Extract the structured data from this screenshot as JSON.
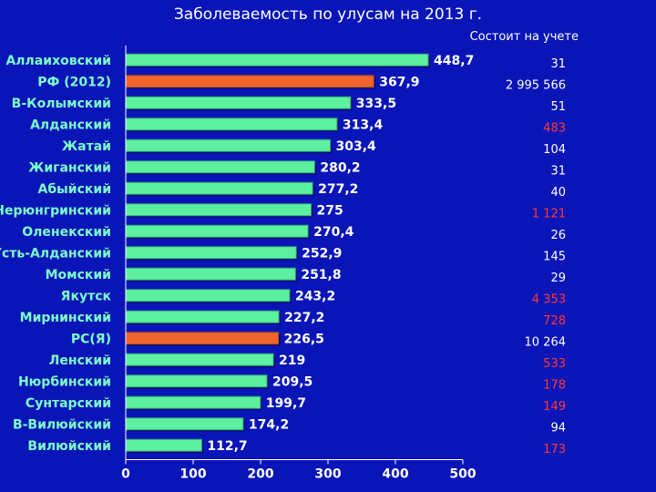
{
  "title": "Заболеваемость по улусам на 2013 г.",
  "registered_header": "Состоит на учете",
  "colors": {
    "background": "#0A15B8",
    "bar": "#5CF0A0",
    "bar_highlight": "#F0642D",
    "category_label": "#7CFFC8",
    "registered_default": "#ffffff",
    "registered_alert": "#FF3B30"
  },
  "chart_data": {
    "type": "bar",
    "orientation": "horizontal",
    "title": "Заболеваемость по улусам на 2013 г.",
    "xlim": [
      0,
      500
    ],
    "xticks": [
      0,
      100,
      200,
      300,
      400,
      500
    ],
    "grid": false,
    "categories": [
      "Аллаиховский",
      "РФ (2012)",
      "В-Колымский",
      "Алданский",
      "Жатай",
      "Жиганский",
      "Абыйский",
      "Нерюнгринский",
      "Оленекский",
      "Усть-Алданский",
      "Момский",
      "Якутск",
      "Мирнинский",
      "РС(Я)",
      "Ленский",
      "Нюрбинский",
      "Сунтарский",
      "В-Вилюйский",
      "Вилюйский"
    ],
    "values": [
      448.7,
      367.9,
      333.5,
      313.4,
      303.4,
      280.2,
      277.2,
      275,
      270.4,
      252.9,
      251.8,
      243.2,
      227.2,
      226.5,
      219,
      209.5,
      199.7,
      174.2,
      112.7
    ],
    "value_labels": [
      "448,7",
      "367,9",
      "333,5",
      "313,4",
      "303,4",
      "280,2",
      "277,2",
      "275",
      "270,4",
      "252,9",
      "251,8",
      "243,2",
      "227,2",
      "226,5",
      "219",
      "209,5",
      "199,7",
      "174,2",
      "112,7"
    ],
    "highlighted": [
      "РФ (2012)",
      "РС(Я)"
    ],
    "registered": [
      "31",
      "2 995 566",
      "51",
      "483",
      "104",
      "31",
      "40",
      "1 121",
      "26",
      "145",
      "29",
      "4 353",
      "728",
      "10 264",
      "533",
      "178",
      "149",
      "94",
      "173"
    ],
    "registered_alert": [
      false,
      false,
      false,
      true,
      false,
      false,
      false,
      true,
      false,
      false,
      false,
      true,
      true,
      false,
      true,
      true,
      true,
      false,
      true
    ]
  }
}
